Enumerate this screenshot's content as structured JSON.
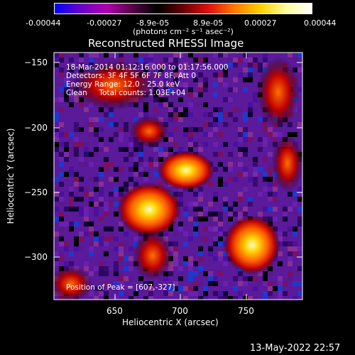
{
  "colorbar": {
    "tick_labels": [
      "-0.00044",
      "-0.00027",
      "-8.9e-05",
      "8.9e-05",
      "0.00027",
      "0.00044"
    ],
    "unit_label": "(photons cm⁻² s⁻¹ asec⁻²)",
    "colors": [
      "#0000ff",
      "#6a00c8",
      "#b000b0",
      "#5a004a",
      "#000000",
      "#6a0000",
      "#e01010",
      "#ff7a00",
      "#ffd000",
      "#fffca0",
      "#ffffff"
    ]
  },
  "title": "Reconstructed RHESSI Image",
  "overlay": {
    "line1": "18-Mar-2014 01:12:16.000 to 01:17:56.000",
    "line2": "Detectors: 3F 4F 5F 6F 7F 8F, Att 0",
    "line3": "Energy Range: 12.0 - 25.0 keV",
    "line4": "Clean     Total counts: 1.03E+04",
    "peak": "Position of Peak = [607,-327]"
  },
  "x_axis": {
    "label": "Heliocentric X (arcsec)",
    "ticks": [
      "650",
      "700",
      "750"
    ]
  },
  "y_axis": {
    "label": "Heliocentric Y (arcsec)",
    "ticks": [
      "−150",
      "−200",
      "−250",
      "−300"
    ]
  },
  "timestamp": "13-May-2022 22:57"
}
